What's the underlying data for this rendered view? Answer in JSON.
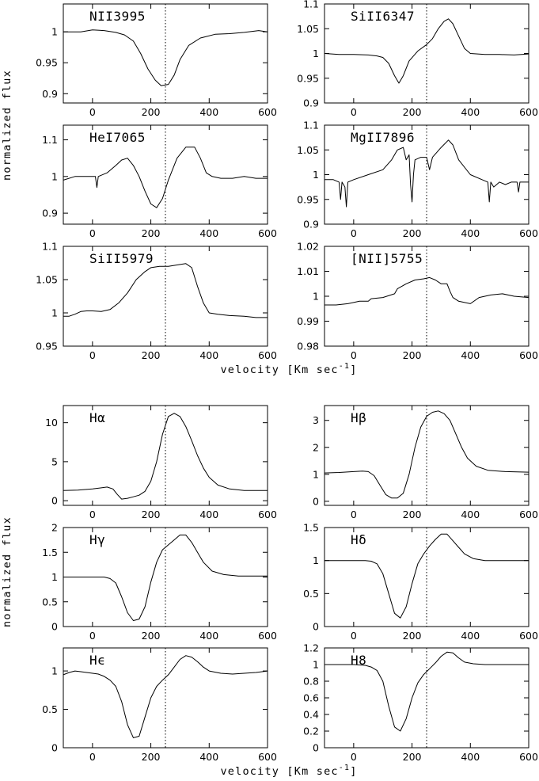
{
  "figure": {
    "top_xlabel": "velocity [Km sec",
    "top_xlabel_sup": "-1",
    "top_xlabel_end": "]",
    "bottom_xlabel": "velocity [Km sec",
    "bottom_xlabel_sup": "-1",
    "bottom_xlabel_end": "]",
    "top_ylabel": "normalized flux",
    "bottom_ylabel": "normalized flux",
    "line_color": "#000000"
  },
  "chart_data": [
    {
      "type": "line",
      "title": "NII3995",
      "xlim": [
        -100,
        600
      ],
      "ylim": [
        0.885,
        1.045
      ],
      "xticks": [
        0,
        200,
        400,
        600
      ],
      "yticks": [
        0.9,
        0.95,
        1
      ],
      "yticklabels": [
        "0.9",
        "0.95",
        "1"
      ],
      "marker_x": 250,
      "series": [
        {
          "x": [
            -100,
            -40,
            0,
            40,
            80,
            110,
            140,
            165,
            190,
            215,
            235,
            260,
            280,
            300,
            330,
            370,
            420,
            470,
            520,
            570,
            600
          ],
          "y": [
            1.0,
            1.0,
            1.003,
            1.002,
            0.999,
            0.995,
            0.985,
            0.965,
            0.94,
            0.922,
            0.913,
            0.915,
            0.93,
            0.955,
            0.978,
            0.99,
            0.996,
            0.997,
            0.999,
            1.002,
            1.0
          ]
        }
      ]
    },
    {
      "type": "line",
      "title": "SiII6347",
      "xlim": [
        -100,
        600
      ],
      "ylim": [
        0.9,
        1.1
      ],
      "xticks": [
        0,
        200,
        400,
        600
      ],
      "yticks": [
        0.9,
        0.95,
        1,
        1.05,
        1.1
      ],
      "yticklabels": [
        "0.9",
        "0.95",
        "1",
        "1.05",
        "1.1"
      ],
      "marker_x": 250,
      "series": [
        {
          "x": [
            -100,
            -50,
            0,
            50,
            80,
            100,
            120,
            140,
            155,
            170,
            190,
            220,
            250,
            270,
            290,
            310,
            325,
            340,
            360,
            380,
            400,
            450,
            500,
            550,
            600
          ],
          "y": [
            1.0,
            0.998,
            0.998,
            0.997,
            0.995,
            0.992,
            0.98,
            0.955,
            0.94,
            0.955,
            0.985,
            1.005,
            1.018,
            1.03,
            1.05,
            1.065,
            1.07,
            1.06,
            1.035,
            1.01,
            1.0,
            0.998,
            0.998,
            0.997,
            0.999
          ]
        }
      ]
    },
    {
      "type": "line",
      "title": "HeI7065",
      "xlim": [
        -100,
        600
      ],
      "ylim": [
        0.87,
        1.14
      ],
      "xticks": [
        0,
        200,
        400,
        600
      ],
      "yticks": [
        0.9,
        1,
        1.1
      ],
      "yticklabels": [
        "0.9",
        "1",
        "1.1"
      ],
      "marker_x": 250,
      "series": [
        {
          "x": [
            -100,
            -60,
            -20,
            10,
            15,
            20,
            50,
            80,
            100,
            120,
            140,
            160,
            180,
            200,
            220,
            240,
            260,
            290,
            320,
            350,
            370,
            390,
            410,
            440,
            480,
            520,
            560,
            600
          ],
          "y": [
            0.99,
            1.0,
            1.0,
            1.0,
            0.97,
            1.0,
            1.01,
            1.03,
            1.045,
            1.05,
            1.03,
            1.0,
            0.96,
            0.925,
            0.915,
            0.94,
            0.99,
            1.05,
            1.08,
            1.08,
            1.05,
            1.01,
            1.0,
            0.995,
            0.995,
            1.0,
            0.995,
            0.995
          ]
        }
      ]
    },
    {
      "type": "line",
      "title": "MgII7896",
      "xlim": [
        -100,
        600
      ],
      "ylim": [
        0.9,
        1.1
      ],
      "xticks": [
        0,
        200,
        400,
        600
      ],
      "yticks": [
        0.9,
        0.95,
        1,
        1.05,
        1.1
      ],
      "yticklabels": [
        "0.9",
        "0.95",
        "1",
        "1.05",
        "1.1"
      ],
      "marker_x": 250,
      "series": [
        {
          "x": [
            -100,
            -70,
            -50,
            -45,
            -40,
            -30,
            -25,
            -20,
            0,
            50,
            100,
            130,
            150,
            170,
            180,
            190,
            195,
            200,
            205,
            210,
            230,
            250,
            260,
            270,
            300,
            325,
            340,
            360,
            400,
            440,
            460,
            465,
            470,
            480,
            500,
            520,
            540,
            560,
            565,
            570,
            600
          ],
          "y": [
            0.99,
            0.99,
            0.985,
            0.95,
            0.985,
            0.975,
            0.935,
            0.985,
            0.99,
            1.0,
            1.01,
            1.03,
            1.05,
            1.055,
            1.03,
            1.04,
            0.98,
            0.945,
            1.0,
            1.03,
            1.035,
            1.035,
            1.01,
            1.035,
            1.055,
            1.07,
            1.06,
            1.03,
            1.0,
            0.99,
            0.985,
            0.945,
            0.985,
            0.975,
            0.985,
            0.98,
            0.985,
            0.985,
            0.965,
            0.985,
            0.985
          ]
        }
      ]
    },
    {
      "type": "line",
      "title": "SiII5979",
      "xlim": [
        -100,
        600
      ],
      "ylim": [
        0.95,
        1.1
      ],
      "xticks": [
        0,
        200,
        400,
        600
      ],
      "yticks": [
        0.95,
        1,
        1.05,
        1.1
      ],
      "yticklabels": [
        "0.95",
        "1",
        "1.05",
        "1.1"
      ],
      "marker_x": 250,
      "series": [
        {
          "x": [
            -100,
            -80,
            -60,
            -40,
            -20,
            0,
            30,
            60,
            90,
            120,
            150,
            180,
            200,
            230,
            260,
            290,
            320,
            340,
            360,
            380,
            400,
            430,
            470,
            520,
            560,
            600
          ],
          "y": [
            0.995,
            0.995,
            0.998,
            1.002,
            1.003,
            1.003,
            1.002,
            1.005,
            1.015,
            1.03,
            1.05,
            1.062,
            1.068,
            1.07,
            1.07,
            1.072,
            1.074,
            1.068,
            1.04,
            1.015,
            1.0,
            0.998,
            0.996,
            0.995,
            0.993,
            0.993
          ]
        }
      ]
    },
    {
      "type": "line",
      "title": "[NII]5755",
      "xlim": [
        -100,
        600
      ],
      "ylim": [
        0.98,
        1.02
      ],
      "xticks": [
        0,
        200,
        400,
        600
      ],
      "yticks": [
        0.98,
        0.99,
        1,
        1.01,
        1.02
      ],
      "yticklabels": [
        "0.98",
        "0.99",
        "1",
        "1.01",
        "1.02"
      ],
      "marker_x": 250,
      "series": [
        {
          "x": [
            -100,
            -60,
            -20,
            20,
            50,
            60,
            100,
            140,
            150,
            180,
            210,
            240,
            260,
            280,
            300,
            320,
            330,
            340,
            360,
            400,
            430,
            470,
            510,
            550,
            600
          ],
          "y": [
            0.9965,
            0.9965,
            0.997,
            0.998,
            0.998,
            0.999,
            0.9995,
            1.001,
            1.003,
            1.005,
            1.0065,
            1.007,
            1.0075,
            1.0065,
            1.005,
            1.005,
            1.002,
            0.9995,
            0.998,
            0.997,
            0.9995,
            1.0005,
            1.001,
            1.0,
            0.9995
          ]
        }
      ]
    },
    {
      "type": "line",
      "title": "Hα",
      "xlim": [
        -100,
        600
      ],
      "ylim": [
        -0.6,
        12.2
      ],
      "xticks": [
        0,
        200,
        400,
        600
      ],
      "yticks": [
        0,
        5,
        10
      ],
      "yticklabels": [
        "0",
        "5",
        "10"
      ],
      "marker_x": 250,
      "series": [
        {
          "x": [
            -100,
            -50,
            0,
            50,
            70,
            85,
            100,
            120,
            140,
            160,
            180,
            200,
            220,
            240,
            260,
            280,
            300,
            320,
            340,
            360,
            380,
            400,
            430,
            470,
            520,
            570,
            600
          ],
          "y": [
            1.3,
            1.35,
            1.5,
            1.75,
            1.5,
            0.8,
            0.2,
            0.3,
            0.5,
            0.7,
            1.2,
            2.5,
            5.0,
            8.5,
            10.8,
            11.2,
            10.8,
            9.5,
            7.7,
            5.8,
            4.2,
            3.0,
            2.0,
            1.5,
            1.3,
            1.3,
            1.3
          ]
        }
      ]
    },
    {
      "type": "line",
      "title": "Hβ",
      "xlim": [
        -100,
        600
      ],
      "ylim": [
        -0.15,
        3.55
      ],
      "xticks": [
        0,
        200,
        400,
        600
      ],
      "yticks": [
        0,
        1,
        2,
        3
      ],
      "yticklabels": [
        "0",
        "1",
        "2",
        "3"
      ],
      "marker_x": 250,
      "series": [
        {
          "x": [
            -100,
            -50,
            0,
            30,
            50,
            70,
            90,
            110,
            130,
            150,
            170,
            190,
            210,
            230,
            250,
            270,
            290,
            310,
            330,
            350,
            370,
            390,
            420,
            460,
            520,
            600
          ],
          "y": [
            1.05,
            1.07,
            1.1,
            1.12,
            1.1,
            0.95,
            0.6,
            0.25,
            0.12,
            0.12,
            0.3,
            1.0,
            2.0,
            2.75,
            3.15,
            3.3,
            3.35,
            3.25,
            3.0,
            2.5,
            2.0,
            1.6,
            1.3,
            1.15,
            1.1,
            1.08
          ]
        }
      ]
    },
    {
      "type": "line",
      "title": "Hγ",
      "xlim": [
        -100,
        600
      ],
      "ylim": [
        0,
        2
      ],
      "xticks": [
        0,
        200,
        400,
        600
      ],
      "yticks": [
        0,
        0.5,
        1,
        1.5,
        2
      ],
      "yticklabels": [
        "0",
        "0.5",
        "1",
        "1.5",
        "2"
      ],
      "marker_x": 250,
      "series": [
        {
          "x": [
            -100,
            -50,
            0,
            40,
            60,
            80,
            100,
            120,
            140,
            160,
            180,
            200,
            220,
            240,
            260,
            280,
            300,
            320,
            340,
            360,
            380,
            410,
            450,
            500,
            550,
            600
          ],
          "y": [
            1.0,
            1.0,
            1.0,
            1.0,
            0.97,
            0.88,
            0.6,
            0.28,
            0.12,
            0.15,
            0.4,
            0.9,
            1.3,
            1.55,
            1.65,
            1.75,
            1.85,
            1.85,
            1.7,
            1.5,
            1.3,
            1.12,
            1.05,
            1.02,
            1.02,
            1.02
          ]
        }
      ]
    },
    {
      "type": "line",
      "title": "Hδ",
      "xlim": [
        -100,
        600
      ],
      "ylim": [
        0,
        1.5
      ],
      "xticks": [
        0,
        200,
        400,
        600
      ],
      "yticks": [
        0,
        0.5,
        1,
        1.5
      ],
      "yticklabels": [
        "0",
        "0.5",
        "1",
        "1.5"
      ],
      "marker_x": 250,
      "series": [
        {
          "x": [
            -100,
            -50,
            0,
            40,
            60,
            80,
            100,
            120,
            140,
            160,
            180,
            200,
            220,
            240,
            260,
            280,
            300,
            320,
            340,
            360,
            380,
            410,
            450,
            500,
            550,
            600
          ],
          "y": [
            1.0,
            1.0,
            1.0,
            1.0,
            0.99,
            0.95,
            0.8,
            0.5,
            0.2,
            0.13,
            0.3,
            0.65,
            0.95,
            1.1,
            1.22,
            1.32,
            1.4,
            1.4,
            1.3,
            1.2,
            1.1,
            1.03,
            1.0,
            1.0,
            1.0,
            1.0
          ]
        }
      ]
    },
    {
      "type": "line",
      "title": "Hϵ",
      "xlim": [
        -100,
        600
      ],
      "ylim": [
        0,
        1.3
      ],
      "xticks": [
        0,
        200,
        400,
        600
      ],
      "yticks": [
        0,
        0.5,
        1
      ],
      "yticklabels": [
        "0",
        "0.5",
        "1"
      ],
      "marker_x": 250,
      "series": [
        {
          "x": [
            -100,
            -80,
            -60,
            -40,
            -20,
            0,
            20,
            40,
            60,
            80,
            100,
            120,
            140,
            160,
            180,
            200,
            220,
            240,
            260,
            280,
            300,
            320,
            340,
            360,
            380,
            400,
            440,
            480,
            520,
            560,
            600
          ],
          "y": [
            0.95,
            0.98,
            1.0,
            0.99,
            0.98,
            0.97,
            0.96,
            0.93,
            0.88,
            0.8,
            0.6,
            0.3,
            0.13,
            0.15,
            0.4,
            0.65,
            0.8,
            0.88,
            0.95,
            1.05,
            1.15,
            1.2,
            1.18,
            1.12,
            1.05,
            1.0,
            0.97,
            0.96,
            0.97,
            0.98,
            1.0
          ]
        }
      ]
    },
    {
      "type": "line",
      "title": "H8",
      "xlim": [
        -100,
        600
      ],
      "ylim": [
        0,
        1.2
      ],
      "xticks": [
        0,
        200,
        400,
        600
      ],
      "yticks": [
        0,
        0.2,
        0.4,
        0.6,
        0.8,
        1,
        1.2
      ],
      "yticklabels": [
        "0",
        "0.2",
        "0.4",
        "0.6",
        "0.8",
        "1",
        "1.2"
      ],
      "marker_x": 250,
      "series": [
        {
          "x": [
            -100,
            -50,
            0,
            40,
            60,
            80,
            100,
            120,
            140,
            160,
            180,
            200,
            220,
            240,
            260,
            280,
            300,
            320,
            340,
            360,
            380,
            410,
            450,
            500,
            550,
            600
          ],
          "y": [
            1.0,
            1.0,
            1.0,
            0.99,
            0.97,
            0.93,
            0.8,
            0.5,
            0.25,
            0.2,
            0.35,
            0.6,
            0.78,
            0.88,
            0.95,
            1.02,
            1.1,
            1.15,
            1.14,
            1.08,
            1.03,
            1.01,
            1.0,
            1.0,
            1.0,
            1.0
          ]
        }
      ]
    }
  ]
}
